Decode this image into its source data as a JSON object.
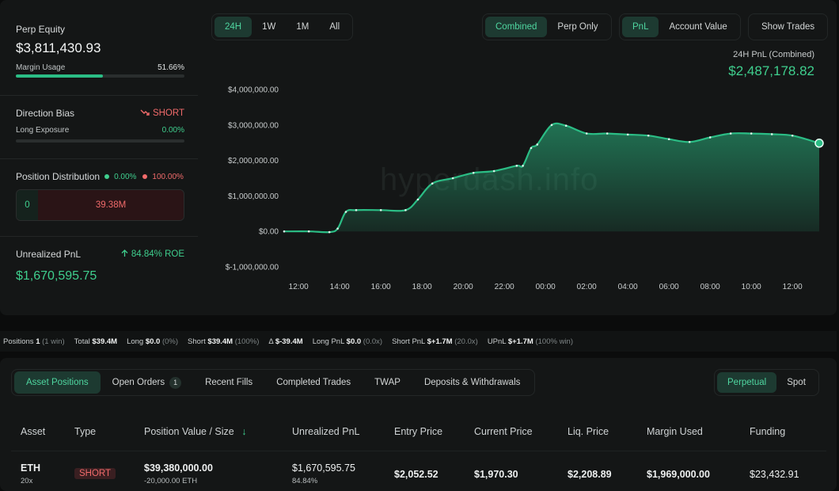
{
  "summary": {
    "perp_equity_label": "Perp Equity",
    "perp_equity_value": "$3,811,430.93",
    "margin_usage_label": "Margin Usage",
    "margin_usage_value": "51.66%",
    "margin_usage_fraction": 0.5166,
    "direction_bias_label": "Direction Bias",
    "direction_bias_value": "SHORT",
    "long_exposure_label": "Long Exposure",
    "long_exposure_value": "0.00%",
    "position_distribution_label": "Position Distribution",
    "long_pct": "0.00%",
    "short_pct": "100.00%",
    "long_amount": "0",
    "short_amount": "39.38M",
    "unrealized_pnl_label": "Unrealized PnL",
    "roe_value": "84.84% ROE",
    "unrealized_pnl_value": "$1,670,595.75"
  },
  "time_ranges": [
    "24H",
    "1W",
    "1M",
    "All"
  ],
  "mode_toggle": [
    "Combined",
    "Perp Only"
  ],
  "metric_toggle": [
    "PnL",
    "Account Value"
  ],
  "show_trades_label": "Show Trades",
  "chart_header": {
    "title": "24H PnL (Combined)",
    "value": "$2,487,178.82"
  },
  "watermark": "hyperdash.info",
  "chart_data": {
    "type": "area",
    "title": "24H PnL (Combined)",
    "xlabel": "",
    "ylabel": "",
    "ylim": [
      -1000000,
      4000000
    ],
    "y_ticks": [
      "$4,000,000.00",
      "$3,000,000.00",
      "$2,000,000.00",
      "$1,000,000.00",
      "$0.00",
      "$-1,000,000.00"
    ],
    "y_tick_values": [
      4000000,
      3000000,
      2000000,
      1000000,
      0,
      -1000000
    ],
    "x_ticks": [
      "12:00",
      "14:00",
      "16:00",
      "18:00",
      "20:00",
      "22:00",
      "00:00",
      "02:00",
      "04:00",
      "06:00",
      "08:00",
      "10:00",
      "12:00"
    ],
    "x_tick_hours": [
      0,
      2,
      4,
      6,
      8,
      10,
      12,
      14,
      16,
      18,
      20,
      22,
      24
    ],
    "x_range_hours": [
      -0.7,
      25.3
    ],
    "grid": false,
    "color": "#2bbd85",
    "series": [
      {
        "x_hours": [
          -0.7,
          0.5,
          1.5,
          1.9,
          2.3,
          2.8,
          4.0,
          5.2,
          5.8,
          6.5,
          7.5,
          8.5,
          9.5,
          10.6,
          10.9,
          11.3,
          11.6,
          12.3,
          13.0,
          14.0,
          15.0,
          16.0,
          17.0,
          18.0,
          19.0,
          20.0,
          21.0,
          22.0,
          23.0,
          24.0,
          25.3
        ],
        "values": [
          0,
          0,
          -20000,
          80000,
          550000,
          600000,
          600000,
          600000,
          900000,
          1350000,
          1500000,
          1650000,
          1700000,
          1850000,
          1850000,
          2350000,
          2450000,
          3000000,
          2980000,
          2760000,
          2760000,
          2730000,
          2700000,
          2600000,
          2520000,
          2650000,
          2760000,
          2760000,
          2740000,
          2700000,
          2487178.82
        ]
      }
    ]
  },
  "stats_bar": {
    "positions_label": "Positions",
    "positions_value": "1",
    "positions_note": "(1 win)",
    "total_label": "Total",
    "total_value": "$39.4M",
    "long_label": "Long",
    "long_value": "$0.0",
    "long_note": "(0%)",
    "short_label": "Short",
    "short_value": "$39.4M",
    "short_note": "(100%)",
    "delta_label": "Δ",
    "delta_value": "$-39.4M",
    "long_pnl_label": "Long PnL",
    "long_pnl_value": "$0.0",
    "long_pnl_note": "(0.0x)",
    "short_pnl_label": "Short PnL",
    "short_pnl_value": "$+1.7M",
    "short_pnl_note": "(20.0x)",
    "upnl_label": "UPnL",
    "upnl_value": "$+1.7M",
    "upnl_note": "(100% win)"
  },
  "tabs": {
    "asset_positions": "Asset Positions",
    "open_orders": "Open Orders",
    "open_orders_count": "1",
    "recent_fills": "Recent Fills",
    "completed_trades": "Completed Trades",
    "twap": "TWAP",
    "deposits": "Deposits & Withdrawals"
  },
  "market_toggle": [
    "Perpetual",
    "Spot"
  ],
  "table": {
    "headers": {
      "asset": "Asset",
      "type": "Type",
      "position_value": "Position Value / Size",
      "sort_arrow": "↓",
      "unrealized_pnl": "Unrealized PnL",
      "entry_price": "Entry Price",
      "current_price": "Current Price",
      "liq_price": "Liq. Price",
      "margin_used": "Margin Used",
      "funding": "Funding"
    },
    "rows": [
      {
        "asset": "ETH",
        "leverage": "20x",
        "type": "SHORT",
        "position_value": "$39,380,000.00",
        "size": "-20,000.00 ETH",
        "unrealized_pnl": "$1,670,595.75",
        "unrealized_pct": "84.84%",
        "entry_price": "$2,052.52",
        "current_price": "$1,970.30",
        "liq_price": "$2,208.89",
        "margin_used": "$1,969,000.00",
        "funding": "$23,432.91"
      }
    ]
  }
}
